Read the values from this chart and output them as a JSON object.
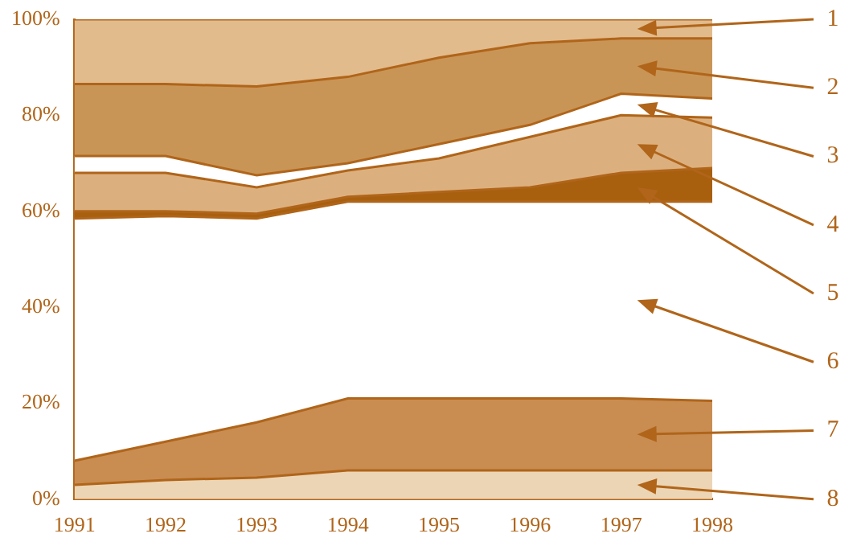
{
  "chart_data": {
    "type": "area",
    "stacked": true,
    "x": [
      1991,
      1992,
      1993,
      1994,
      1995,
      1996,
      1997,
      1998
    ],
    "xlim": [
      1991,
      1998
    ],
    "xticks": [
      1991,
      1992,
      1993,
      1994,
      1995,
      1996,
      1997,
      1998
    ],
    "ylim": [
      0,
      100
    ],
    "yticks": [
      {
        "value": 0,
        "label": "0%"
      },
      {
        "value": 20,
        "label": "20%"
      },
      {
        "value": 40,
        "label": "40%"
      },
      {
        "value": 60,
        "label": "60%"
      },
      {
        "value": 80,
        "label": "80%"
      },
      {
        "value": 100,
        "label": "100%"
      }
    ],
    "grid": false,
    "legend": false,
    "series": [
      {
        "name": "8",
        "color": "#ecd5b5",
        "values": [
          3,
          4,
          4.5,
          6,
          6,
          6,
          6,
          6
        ]
      },
      {
        "name": "7",
        "color": "#c98d52",
        "values": [
          5,
          8,
          11.5,
          15,
          15,
          15,
          15,
          14.5
        ]
      },
      {
        "name": "6",
        "color": "#ffffff",
        "values": [
          50.5,
          47,
          42.5,
          41,
          41,
          41,
          41,
          41.5
        ]
      },
      {
        "name": "5",
        "color": "#a8600f",
        "values": [
          1.5,
          1,
          1,
          1,
          2,
          3,
          6,
          7
        ]
      },
      {
        "name": "4",
        "color": "#dcb07e",
        "values": [
          8,
          8,
          5.5,
          5.5,
          7,
          10.5,
          12,
          10.5
        ]
      },
      {
        "name": "3",
        "color": "#ffffff",
        "values": [
          3.5,
          3.5,
          2.5,
          1.5,
          3,
          2.5,
          4.5,
          4
        ]
      },
      {
        "name": "2",
        "color": "#c99556",
        "values": [
          15,
          15,
          18.5,
          18,
          18,
          17,
          11.5,
          12.5
        ]
      },
      {
        "name": "1",
        "color": "#e2bb8c",
        "values": [
          13.5,
          13.5,
          14,
          12,
          8,
          5,
          4,
          4
        ]
      }
    ]
  }
}
